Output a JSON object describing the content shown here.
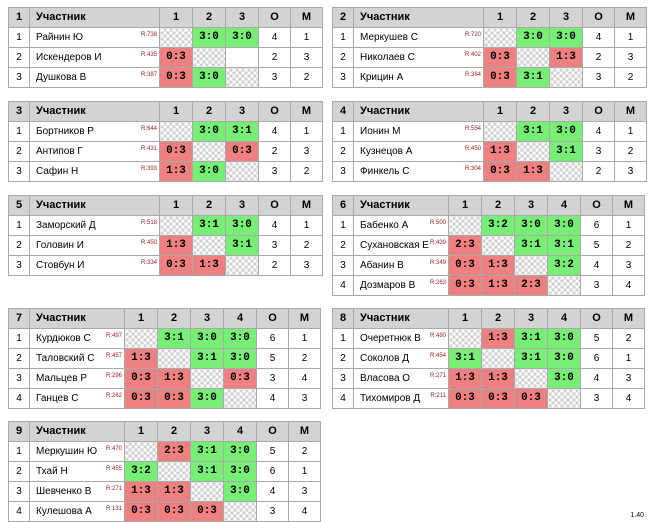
{
  "version": "1.40",
  "groups": [
    {
      "num": "1",
      "player_header": "Участник",
      "col_heads": [
        "1",
        "2",
        "3"
      ],
      "o_head": "О",
      "m_head": "М",
      "rows": [
        {
          "num": "1",
          "name": "Райнин Ю",
          "rating": "R:738",
          "cells": [
            {
              "t": "",
              "k": "x"
            },
            {
              "t": "3:0",
              "k": "w"
            },
            {
              "t": "3:0",
              "k": "w"
            }
          ],
          "o": "4",
          "m": "1"
        },
        {
          "num": "2",
          "name": "Искендеров И",
          "rating": "R:435",
          "cells": [
            {
              "t": "0:3",
              "k": "l"
            },
            {
              "t": "",
              "k": "x"
            },
            {
              "t": "",
              "k": "e"
            }
          ],
          "o": "2",
          "m": "3"
        },
        {
          "num": "3",
          "name": "Душкова В",
          "rating": "R:387",
          "cells": [
            {
              "t": "0:3",
              "k": "l"
            },
            {
              "t": "3:0",
              "k": "w"
            },
            {
              "t": "",
              "k": "x"
            }
          ],
          "o": "3",
          "m": "2"
        }
      ]
    },
    {
      "num": "2",
      "player_header": "Участник",
      "col_heads": [
        "1",
        "2",
        "3"
      ],
      "o_head": "О",
      "m_head": "М",
      "rows": [
        {
          "num": "1",
          "name": "Меркушев С",
          "rating": "R:720",
          "cells": [
            {
              "t": "",
              "k": "x"
            },
            {
              "t": "3:0",
              "k": "w"
            },
            {
              "t": "3:0",
              "k": "w"
            }
          ],
          "o": "4",
          "m": "1"
        },
        {
          "num": "2",
          "name": "Николаев С",
          "rating": "R:402",
          "cells": [
            {
              "t": "0:3",
              "k": "l"
            },
            {
              "t": "",
              "k": "x"
            },
            {
              "t": "1:3",
              "k": "l"
            }
          ],
          "o": "2",
          "m": "3"
        },
        {
          "num": "3",
          "name": "Крицин А",
          "rating": "R:384",
          "cells": [
            {
              "t": "0:3",
              "k": "l"
            },
            {
              "t": "3:1",
              "k": "w"
            },
            {
              "t": "",
              "k": "x"
            }
          ],
          "o": "3",
          "m": "2"
        }
      ]
    },
    {
      "num": "3",
      "player_header": "Участник",
      "col_heads": [
        "1",
        "2",
        "3"
      ],
      "o_head": "О",
      "m_head": "М",
      "rows": [
        {
          "num": "1",
          "name": "Бортников Р",
          "rating": "R:644",
          "cells": [
            {
              "t": "",
              "k": "x"
            },
            {
              "t": "3:0",
              "k": "w"
            },
            {
              "t": "3:1",
              "k": "w"
            }
          ],
          "o": "4",
          "m": "1"
        },
        {
          "num": "2",
          "name": "Антипов Г",
          "rating": "R:431",
          "cells": [
            {
              "t": "0:3",
              "k": "l"
            },
            {
              "t": "",
              "k": "x"
            },
            {
              "t": "0:3",
              "k": "l"
            }
          ],
          "o": "2",
          "m": "3"
        },
        {
          "num": "3",
          "name": "Сафин Н",
          "rating": "R:393",
          "cells": [
            {
              "t": "1:3",
              "k": "l"
            },
            {
              "t": "3:0",
              "k": "w"
            },
            {
              "t": "",
              "k": "x"
            }
          ],
          "o": "3",
          "m": "2"
        }
      ]
    },
    {
      "num": "4",
      "player_header": "Участник",
      "col_heads": [
        "1",
        "2",
        "3"
      ],
      "o_head": "О",
      "m_head": "М",
      "rows": [
        {
          "num": "1",
          "name": "Ионин М",
          "rating": "R:554",
          "cells": [
            {
              "t": "",
              "k": "x"
            },
            {
              "t": "3:1",
              "k": "w"
            },
            {
              "t": "3:0",
              "k": "w"
            }
          ],
          "o": "4",
          "m": "1"
        },
        {
          "num": "2",
          "name": "Кузнецов А",
          "rating": "R:450",
          "cells": [
            {
              "t": "1:3",
              "k": "l"
            },
            {
              "t": "",
              "k": "x"
            },
            {
              "t": "3:1",
              "k": "w"
            }
          ],
          "o": "3",
          "m": "2"
        },
        {
          "num": "3",
          "name": "Финкель С",
          "rating": "R:304",
          "cells": [
            {
              "t": "0:3",
              "k": "l"
            },
            {
              "t": "1:3",
              "k": "l"
            },
            {
              "t": "",
              "k": "x"
            }
          ],
          "o": "2",
          "m": "3"
        }
      ]
    },
    {
      "num": "5",
      "player_header": "Участник",
      "col_heads": [
        "1",
        "2",
        "3"
      ],
      "o_head": "О",
      "m_head": "М",
      "rows": [
        {
          "num": "1",
          "name": "Заморский Д",
          "rating": "R:518",
          "cells": [
            {
              "t": "",
              "k": "x"
            },
            {
              "t": "3:1",
              "k": "w"
            },
            {
              "t": "3:0",
              "k": "w"
            }
          ],
          "o": "4",
          "m": "1"
        },
        {
          "num": "2",
          "name": "Головин И",
          "rating": "R:450",
          "cells": [
            {
              "t": "1:3",
              "k": "l"
            },
            {
              "t": "",
              "k": "x"
            },
            {
              "t": "3:1",
              "k": "w"
            }
          ],
          "o": "3",
          "m": "2"
        },
        {
          "num": "3",
          "name": "Стовбун И",
          "rating": "R:334",
          "cells": [
            {
              "t": "0:3",
              "k": "l"
            },
            {
              "t": "1:3",
              "k": "l"
            },
            {
              "t": "",
              "k": "x"
            }
          ],
          "o": "2",
          "m": "3"
        }
      ]
    },
    {
      "num": "6",
      "player_header": "Участник",
      "col_heads": [
        "1",
        "2",
        "3",
        "4"
      ],
      "o_head": "О",
      "m_head": "М",
      "rows": [
        {
          "num": "1",
          "name": "Бабенко А",
          "rating": "R:500",
          "cells": [
            {
              "t": "",
              "k": "x"
            },
            {
              "t": "3:2",
              "k": "w"
            },
            {
              "t": "3:0",
              "k": "w"
            },
            {
              "t": "3:0",
              "k": "w"
            }
          ],
          "o": "6",
          "m": "1"
        },
        {
          "num": "2",
          "name": "Сухановская Е",
          "rating": "R:439",
          "cells": [
            {
              "t": "2:3",
              "k": "l"
            },
            {
              "t": "",
              "k": "x"
            },
            {
              "t": "3:1",
              "k": "w"
            },
            {
              "t": "3:1",
              "k": "w"
            }
          ],
          "o": "5",
          "m": "2"
        },
        {
          "num": "3",
          "name": "Абанин В",
          "rating": "R:349",
          "cells": [
            {
              "t": "0:3",
              "k": "l"
            },
            {
              "t": "1:3",
              "k": "l"
            },
            {
              "t": "",
              "k": "x"
            },
            {
              "t": "3:2",
              "k": "w"
            }
          ],
          "o": "4",
          "m": "3"
        },
        {
          "num": "4",
          "name": "Дозмаров В",
          "rating": "R:263",
          "cells": [
            {
              "t": "0:3",
              "k": "l"
            },
            {
              "t": "1:3",
              "k": "l"
            },
            {
              "t": "2:3",
              "k": "l"
            },
            {
              "t": "",
              "k": "x"
            }
          ],
          "o": "3",
          "m": "4"
        }
      ]
    },
    {
      "num": "7",
      "player_header": "Участник",
      "col_heads": [
        "1",
        "2",
        "3",
        "4"
      ],
      "o_head": "О",
      "m_head": "М",
      "rows": [
        {
          "num": "1",
          "name": "Курдюков С",
          "rating": "R:497",
          "cells": [
            {
              "t": "",
              "k": "x"
            },
            {
              "t": "3:1",
              "k": "w"
            },
            {
              "t": "3:0",
              "k": "w"
            },
            {
              "t": "3:0",
              "k": "w"
            }
          ],
          "o": "6",
          "m": "1"
        },
        {
          "num": "2",
          "name": "Таловский С",
          "rating": "R:457",
          "cells": [
            {
              "t": "1:3",
              "k": "l"
            },
            {
              "t": "",
              "k": "x"
            },
            {
              "t": "3:1",
              "k": "w"
            },
            {
              "t": "3:0",
              "k": "w"
            }
          ],
          "o": "5",
          "m": "2"
        },
        {
          "num": "3",
          "name": "Мальцев Р",
          "rating": "R:296",
          "cells": [
            {
              "t": "0:3",
              "k": "l"
            },
            {
              "t": "1:3",
              "k": "l"
            },
            {
              "t": "",
              "k": "x"
            },
            {
              "t": "0:3",
              "k": "l"
            }
          ],
          "o": "3",
          "m": "4"
        },
        {
          "num": "4",
          "name": "Ганцев С",
          "rating": "R:262",
          "cells": [
            {
              "t": "0:3",
              "k": "l"
            },
            {
              "t": "0:3",
              "k": "l"
            },
            {
              "t": "3:0",
              "k": "w"
            },
            {
              "t": "",
              "k": "x"
            }
          ],
          "o": "4",
          "m": "3"
        }
      ]
    },
    {
      "num": "8",
      "player_header": "Участник",
      "col_heads": [
        "1",
        "2",
        "3",
        "4"
      ],
      "o_head": "О",
      "m_head": "М",
      "rows": [
        {
          "num": "1",
          "name": "Очеретнюк В",
          "rating": "R:480",
          "cells": [
            {
              "t": "",
              "k": "x"
            },
            {
              "t": "1:3",
              "k": "l"
            },
            {
              "t": "3:1",
              "k": "w"
            },
            {
              "t": "3:0",
              "k": "w"
            }
          ],
          "o": "5",
          "m": "2"
        },
        {
          "num": "2",
          "name": "Соколов Д",
          "rating": "R:454",
          "cells": [
            {
              "t": "3:1",
              "k": "w"
            },
            {
              "t": "",
              "k": "x"
            },
            {
              "t": "3:1",
              "k": "w"
            },
            {
              "t": "3:0",
              "k": "w"
            }
          ],
          "o": "6",
          "m": "1"
        },
        {
          "num": "3",
          "name": "Власова О",
          "rating": "R:271",
          "cells": [
            {
              "t": "1:3",
              "k": "l"
            },
            {
              "t": "1:3",
              "k": "l"
            },
            {
              "t": "",
              "k": "x"
            },
            {
              "t": "3:0",
              "k": "w"
            }
          ],
          "o": "4",
          "m": "3"
        },
        {
          "num": "4",
          "name": "Тихомиров Д",
          "rating": "R:211",
          "cells": [
            {
              "t": "0:3",
              "k": "l"
            },
            {
              "t": "0:3",
              "k": "l"
            },
            {
              "t": "0:3",
              "k": "l"
            },
            {
              "t": "",
              "k": "x"
            }
          ],
          "o": "3",
          "m": "4"
        }
      ]
    },
    {
      "num": "9",
      "player_header": "Участник",
      "col_heads": [
        "1",
        "2",
        "3",
        "4"
      ],
      "o_head": "О",
      "m_head": "М",
      "rows": [
        {
          "num": "1",
          "name": "Меркушин Ю",
          "rating": "R:470",
          "cells": [
            {
              "t": "",
              "k": "x"
            },
            {
              "t": "2:3",
              "k": "l"
            },
            {
              "t": "3:1",
              "k": "w"
            },
            {
              "t": "3:0",
              "k": "w"
            }
          ],
          "o": "5",
          "m": "2"
        },
        {
          "num": "2",
          "name": "Тхай Н",
          "rating": "R:455",
          "cells": [
            {
              "t": "3:2",
              "k": "w"
            },
            {
              "t": "",
              "k": "x"
            },
            {
              "t": "3:1",
              "k": "w"
            },
            {
              "t": "3:0",
              "k": "w"
            }
          ],
          "o": "6",
          "m": "1"
        },
        {
          "num": "3",
          "name": "Шевченко В",
          "rating": "R:271",
          "cells": [
            {
              "t": "1:3",
              "k": "l"
            },
            {
              "t": "1:3",
              "k": "l"
            },
            {
              "t": "",
              "k": "x"
            },
            {
              "t": "3:0",
              "k": "w"
            }
          ],
          "o": "4",
          "m": "3"
        },
        {
          "num": "4",
          "name": "Кулешова А",
          "rating": "R:131",
          "cells": [
            {
              "t": "0:3",
              "k": "l"
            },
            {
              "t": "0:3",
              "k": "l"
            },
            {
              "t": "0:3",
              "k": "l"
            },
            {
              "t": "",
              "k": "x"
            }
          ],
          "o": "3",
          "m": "4"
        }
      ]
    }
  ]
}
